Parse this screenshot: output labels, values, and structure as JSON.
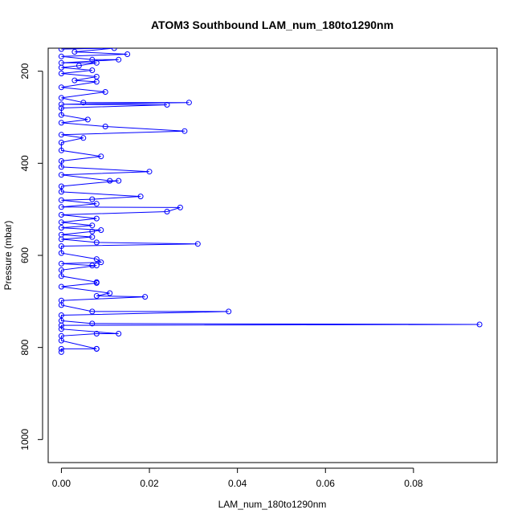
{
  "chart_data": {
    "type": "line",
    "title": "ATOM3 Southbound LAM_num_180to1290nm",
    "xlabel": "LAM_num_180to1290nm",
    "ylabel": "Pressure (mbar)",
    "xlim": [
      -0.003,
      0.099
    ],
    "ylim": [
      1050,
      150
    ],
    "y_reversed": true,
    "x_ticks": [
      0.0,
      0.02,
      0.04,
      0.06,
      0.08
    ],
    "x_tick_labels": [
      "0.00",
      "0.02",
      "0.04",
      "0.06",
      "0.08"
    ],
    "y_ticks": [
      200,
      400,
      600,
      800,
      1000
    ],
    "y_tick_labels": [
      "200",
      "400",
      "600",
      "800",
      "1000"
    ],
    "grid": false,
    "marker": "open-circle",
    "series": [
      {
        "color": "#0000ff",
        "points": [
          [
            0,
            152
          ],
          [
            0.012,
            150
          ],
          [
            0.003,
            158
          ],
          [
            0.015,
            163
          ],
          [
            0,
            168
          ],
          [
            0.007,
            175
          ],
          [
            0.013,
            175
          ],
          [
            0,
            182
          ],
          [
            0.008,
            182
          ],
          [
            0.004,
            188
          ],
          [
            0,
            192
          ],
          [
            0.007,
            198
          ],
          [
            0,
            205
          ],
          [
            0.008,
            212
          ],
          [
            0.003,
            220
          ],
          [
            0.008,
            223
          ],
          [
            0,
            235
          ],
          [
            0.01,
            245
          ],
          [
            0,
            258
          ],
          [
            0.005,
            268
          ],
          [
            0.029,
            268
          ],
          [
            0,
            272
          ],
          [
            0.024,
            273
          ],
          [
            0,
            280
          ],
          [
            0,
            295
          ],
          [
            0.006,
            305
          ],
          [
            0,
            312
          ],
          [
            0.01,
            320
          ],
          [
            0.028,
            330
          ],
          [
            0,
            338
          ],
          [
            0.005,
            345
          ],
          [
            0,
            355
          ],
          [
            0,
            372
          ],
          [
            0.009,
            385
          ],
          [
            0,
            395
          ],
          [
            0,
            408
          ],
          [
            0.02,
            418
          ],
          [
            0,
            425
          ],
          [
            0.011,
            438
          ],
          [
            0.013,
            438
          ],
          [
            0,
            450
          ],
          [
            0,
            462
          ],
          [
            0.018,
            472
          ],
          [
            0.007,
            478
          ],
          [
            0,
            480
          ],
          [
            0.008,
            488
          ],
          [
            0,
            495
          ],
          [
            0.027,
            496
          ],
          [
            0.024,
            505
          ],
          [
            0,
            512
          ],
          [
            0.008,
            520
          ],
          [
            0,
            528
          ],
          [
            0.007,
            535
          ],
          [
            0,
            540
          ],
          [
            0.009,
            545
          ],
          [
            0.007,
            548
          ],
          [
            0,
            555
          ],
          [
            0.007,
            560
          ],
          [
            0,
            565
          ],
          [
            0.008,
            572
          ],
          [
            0.031,
            575
          ],
          [
            0,
            580
          ],
          [
            0,
            595
          ],
          [
            0.008,
            608
          ],
          [
            0.009,
            615
          ],
          [
            0,
            618
          ],
          [
            0.007,
            622
          ],
          [
            0.008,
            622
          ],
          [
            0,
            632
          ],
          [
            0,
            645
          ],
          [
            0.008,
            658
          ],
          [
            0.008,
            660
          ],
          [
            0,
            668
          ],
          [
            0.011,
            682
          ],
          [
            0.008,
            688
          ],
          [
            0.019,
            690
          ],
          [
            0,
            698
          ],
          [
            0,
            708
          ],
          [
            0.007,
            722
          ],
          [
            0.038,
            722
          ],
          [
            0,
            730
          ],
          [
            0,
            742
          ],
          [
            0.007,
            748
          ],
          [
            0.095,
            750
          ],
          [
            0,
            752
          ],
          [
            0,
            760
          ],
          [
            0.013,
            770
          ],
          [
            0.008,
            770
          ],
          [
            0,
            775
          ],
          [
            0,
            785
          ],
          [
            0.008,
            803
          ],
          [
            0.008,
            803
          ],
          [
            0,
            803
          ],
          [
            0,
            810
          ]
        ]
      }
    ]
  }
}
